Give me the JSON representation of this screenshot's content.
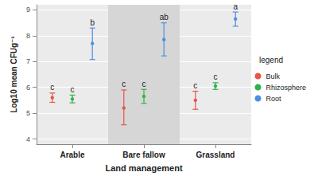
{
  "chart_data": {
    "type": "scatter",
    "x_label": "Land management",
    "y_label": "Log10 mean CFUg⁻¹",
    "legend_title": "legend",
    "legend": "right",
    "grid": true,
    "categories": [
      "Arable",
      "Bare fallow",
      "Grassland"
    ],
    "ylim": [
      3.8,
      9.2
    ],
    "yticks": [
      4,
      5,
      6,
      7,
      8,
      9
    ],
    "series": [
      {
        "name": "Bulk",
        "color": "#e8534a",
        "values": [
          5.6,
          5.2,
          5.5
        ],
        "error_low": [
          5.42,
          4.55,
          5.15
        ],
        "error_high": [
          5.78,
          5.9,
          5.85
        ],
        "letters": [
          "c",
          "c",
          "c"
        ]
      },
      {
        "name": "Rhizosphere",
        "color": "#2db34a",
        "values": [
          5.55,
          5.65,
          6.05
        ],
        "error_low": [
          5.4,
          5.38,
          5.92
        ],
        "error_high": [
          5.7,
          5.92,
          6.18
        ],
        "letters": [
          "c",
          "c",
          "c"
        ]
      },
      {
        "name": "Root",
        "color": "#4b8fe2",
        "values": [
          7.7,
          7.85,
          8.65
        ],
        "error_low": [
          7.08,
          7.22,
          8.37
        ],
        "error_high": [
          8.3,
          8.5,
          8.92
        ],
        "letters": [
          "b",
          "ab",
          "a"
        ]
      }
    ]
  }
}
